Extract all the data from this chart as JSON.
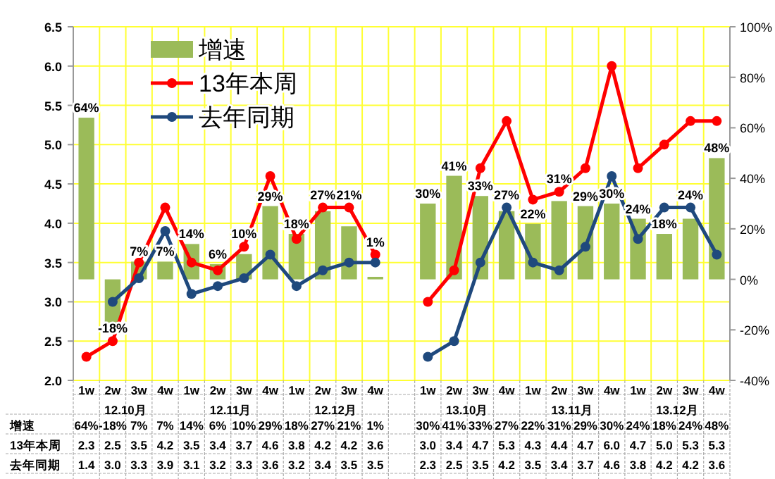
{
  "chart_data": {
    "type": "bar",
    "categories": [
      "1w",
      "2w",
      "3w",
      "4w",
      "1w",
      "2w",
      "3w",
      "4w",
      "1w",
      "2w",
      "3w",
      "4w",
      null,
      "1w",
      "2w",
      "3w",
      "4w",
      "1w",
      "2w",
      "3w",
      "4w",
      "1w",
      "2w",
      "3w",
      "4w"
    ],
    "annotations": [
      "12.10月",
      "12.11月",
      "12.12月",
      "13.10月",
      "13.11月",
      "13.12月"
    ],
    "series": [
      {
        "name": "增速",
        "axis": "y2",
        "color": "#9bbb59",
        "values": [
          64,
          -18,
          7,
          7,
          14,
          6,
          10,
          29,
          18,
          27,
          21,
          1,
          null,
          30,
          41,
          33,
          27,
          22,
          31,
          29,
          30,
          24,
          18,
          24,
          48
        ],
        "value_labels": [
          "64%",
          "-18%",
          "7%",
          "7%",
          "14%",
          "6%",
          "10%",
          "29%",
          "18%",
          "27%",
          "21%",
          "1%",
          null,
          "30%",
          "41%",
          "33%",
          "27%",
          "22%",
          "31%",
          "29%",
          "30%",
          "24%",
          "18%",
          "24%",
          "48%"
        ]
      },
      {
        "name": "13年本周",
        "type": "line",
        "color": "#ff0000",
        "values": [
          2.3,
          2.5,
          3.5,
          4.2,
          3.5,
          3.4,
          3.7,
          4.6,
          3.8,
          4.2,
          4.2,
          3.6,
          null,
          3.0,
          3.4,
          4.7,
          5.3,
          4.3,
          4.4,
          4.7,
          6.0,
          4.7,
          5.0,
          5.3,
          5.3
        ],
        "value_labels": [
          "2.3",
          "2.5",
          "3.5",
          "4.2",
          "3.5",
          "3.4",
          "3.7",
          "4.6",
          "3.8",
          "4.2",
          "4.2",
          "3.6",
          null,
          "3.0",
          "3.4",
          "4.7",
          "5.3",
          "4.3",
          "4.4",
          "4.7",
          "6.0",
          "4.7",
          "5.0",
          "5.3",
          "5.3"
        ]
      },
      {
        "name": "去年同期",
        "type": "line",
        "color": "#1f497d",
        "values": [
          null,
          3.0,
          3.3,
          3.9,
          3.1,
          3.2,
          3.3,
          3.6,
          3.2,
          3.4,
          3.5,
          3.5,
          null,
          2.3,
          2.5,
          3.5,
          4.2,
          3.5,
          3.4,
          3.7,
          4.6,
          3.8,
          4.2,
          4.2,
          3.6
        ],
        "value_labels": [
          "1.4",
          "3.0",
          "3.3",
          "3.9",
          "3.1",
          "3.2",
          "3.3",
          "3.6",
          "3.2",
          "3.4",
          "3.5",
          "3.5",
          null,
          "2.3",
          "2.5",
          "3.5",
          "4.2",
          "3.5",
          "3.4",
          "3.7",
          "4.6",
          "3.8",
          "4.2",
          "4.2",
          "3.6"
        ]
      }
    ],
    "ylim": [
      2,
      6.5
    ],
    "yticks": [
      {
        "value": 2,
        "label": "2.0"
      },
      {
        "value": 2.5,
        "label": "2.5"
      },
      {
        "value": 3,
        "label": "3.0"
      },
      {
        "value": 3.5,
        "label": "3.5"
      },
      {
        "value": 4,
        "label": "4.0"
      },
      {
        "value": 4.5,
        "label": "4.5"
      },
      {
        "value": 5,
        "label": "5.0"
      },
      {
        "value": 5.5,
        "label": "5.5"
      },
      {
        "value": 6,
        "label": "6.0"
      },
      {
        "value": 6.5,
        "label": "6.5"
      }
    ],
    "y2lim": [
      -40,
      100
    ],
    "y2ticks": [
      {
        "value": -40,
        "label": "-40%"
      },
      {
        "value": -20,
        "label": "-20%"
      },
      {
        "value": 0,
        "label": "0%"
      },
      {
        "value": 20,
        "label": "20%"
      },
      {
        "value": 40,
        "label": "40%"
      },
      {
        "value": 60,
        "label": "60%"
      },
      {
        "value": 80,
        "label": "80%"
      },
      {
        "value": 100,
        "label": "100%"
      }
    ],
    "grid": true,
    "legend": "top left",
    "marker": "circle"
  }
}
